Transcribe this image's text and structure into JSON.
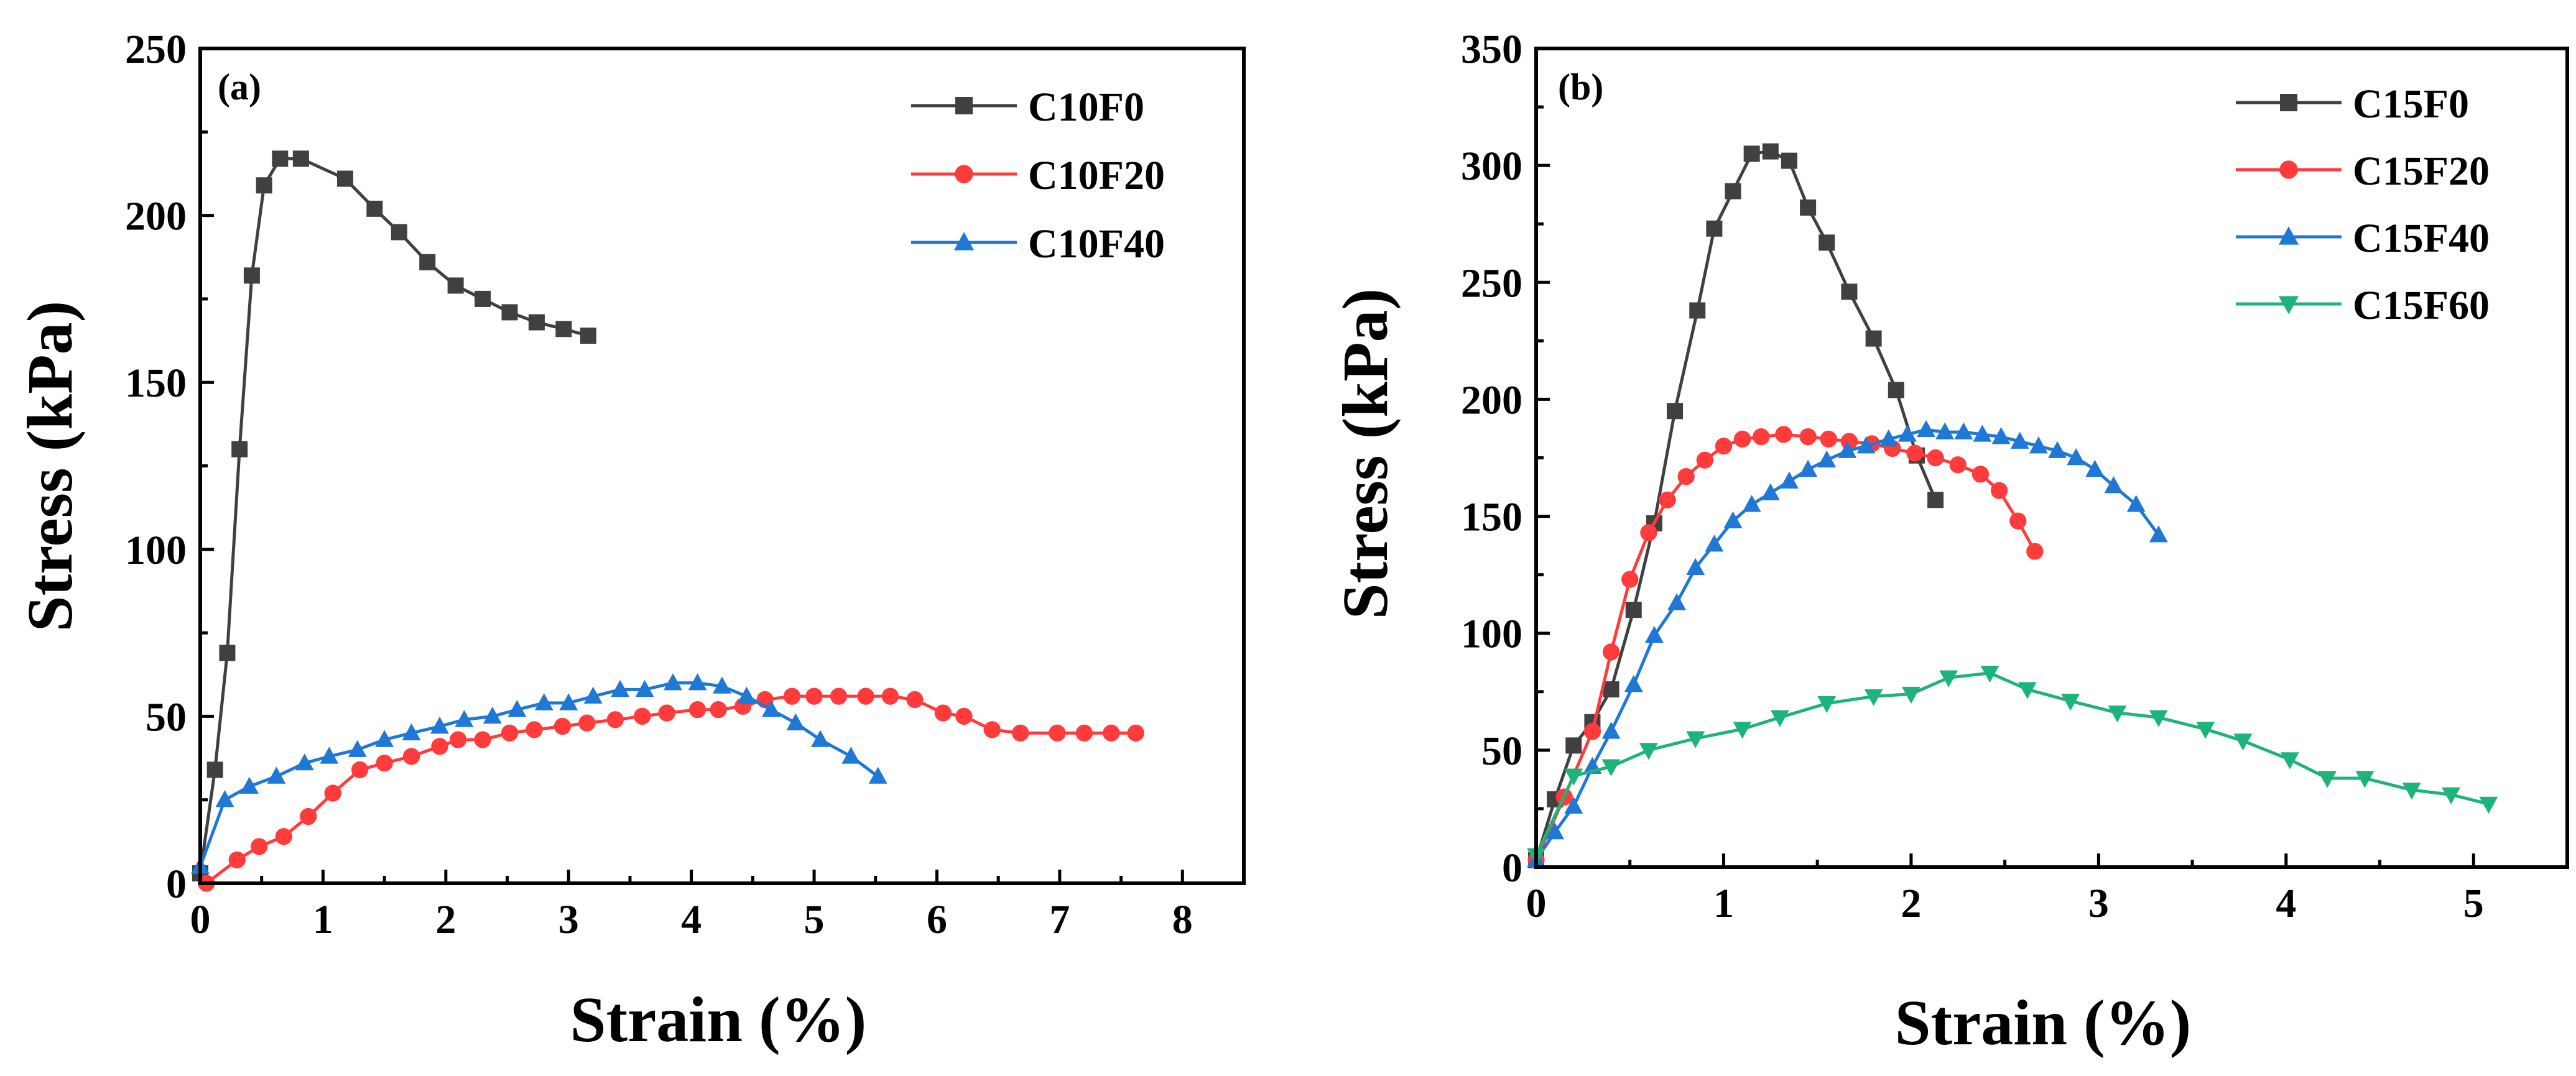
{
  "chart_data": [
    {
      "type": "line",
      "panel_label": "(a)",
      "xlabel": "Strain (%)",
      "ylabel": "Stress (kPa)",
      "xlim": [
        0,
        8.5
      ],
      "ylim": [
        0,
        250
      ],
      "xticks": [
        0,
        1,
        2,
        3,
        4,
        5,
        6,
        7,
        8
      ],
      "yticks": [
        0,
        50,
        100,
        150,
        200,
        250
      ],
      "legend_position": "top-right",
      "series": [
        {
          "name": "C10F0",
          "color": "#404040",
          "marker": "square",
          "x": [
            0,
            0.12,
            0.22,
            0.32,
            0.42,
            0.52,
            0.65,
            0.82,
            1.18,
            1.42,
            1.62,
            1.85,
            2.08,
            2.3,
            2.52,
            2.74,
            2.96,
            3.16
          ],
          "y": [
            3,
            34,
            69,
            130,
            182,
            209,
            217,
            217,
            211,
            202,
            195,
            186,
            179,
            175,
            171,
            168,
            166,
            164
          ]
        },
        {
          "name": "C10F20",
          "color": "#ff3b3b",
          "marker": "circle",
          "x": [
            0.05,
            0.3,
            0.48,
            0.68,
            0.88,
            1.08,
            1.3,
            1.5,
            1.72,
            1.95,
            2.1,
            2.3,
            2.52,
            2.72,
            2.95,
            3.15,
            3.38,
            3.6,
            3.8,
            4.05,
            4.22,
            4.42,
            4.6,
            4.82,
            5.0,
            5.2,
            5.42,
            5.62,
            5.82,
            6.05,
            6.22,
            6.45,
            6.68,
            6.98,
            7.2,
            7.42,
            7.62
          ],
          "y": [
            0,
            7,
            11,
            14,
            20,
            27,
            34,
            36,
            38,
            41,
            43,
            43,
            45,
            46,
            47,
            48,
            49,
            50,
            51,
            52,
            52,
            53,
            55,
            56,
            56,
            56,
            56,
            56,
            55,
            51,
            50,
            46,
            45,
            45,
            45,
            45,
            45
          ]
        },
        {
          "name": "C10F40",
          "color": "#1f78d6",
          "marker": "triangle-up",
          "x": [
            0,
            0.2,
            0.4,
            0.62,
            0.85,
            1.05,
            1.28,
            1.5,
            1.72,
            1.95,
            2.15,
            2.38,
            2.58,
            2.8,
            3.0,
            3.2,
            3.42,
            3.62,
            3.85,
            4.05,
            4.25,
            4.45,
            4.65,
            4.85,
            5.05,
            5.3,
            5.52
          ],
          "y": [
            5,
            25,
            29,
            32,
            36,
            38,
            40,
            43,
            45,
            47,
            49,
            50,
            52,
            54,
            54,
            56,
            58,
            58,
            60,
            60,
            59,
            56,
            52,
            48,
            43,
            38,
            32
          ]
        }
      ]
    },
    {
      "type": "line",
      "panel_label": "(b)",
      "xlabel": "Strain (%)",
      "ylabel": "Stress (kPa)",
      "xlim": [
        0,
        5.5
      ],
      "ylim": [
        0,
        350
      ],
      "xticks": [
        0,
        1,
        2,
        3,
        4,
        5
      ],
      "yticks": [
        0,
        50,
        100,
        150,
        200,
        250,
        300,
        350
      ],
      "legend_position": "top-right",
      "series": [
        {
          "name": "C15F0",
          "color": "#404040",
          "marker": "square",
          "x": [
            0.0,
            0.1,
            0.2,
            0.3,
            0.4,
            0.52,
            0.63,
            0.74,
            0.86,
            0.95,
            1.05,
            1.15,
            1.25,
            1.35,
            1.45,
            1.55,
            1.67,
            1.8,
            1.92,
            2.03,
            2.13
          ],
          "y": [
            3,
            29,
            52,
            62,
            76,
            110,
            147,
            195,
            238,
            273,
            289,
            305,
            306,
            302,
            282,
            267,
            246,
            226,
            204,
            176,
            157
          ]
        },
        {
          "name": "C15F20",
          "color": "#ff3b3b",
          "marker": "circle",
          "x": [
            0.0,
            0.15,
            0.3,
            0.4,
            0.5,
            0.6,
            0.7,
            0.8,
            0.9,
            1.0,
            1.1,
            1.2,
            1.32,
            1.45,
            1.56,
            1.67,
            1.79,
            1.9,
            2.02,
            2.13,
            2.25,
            2.37,
            2.47,
            2.57,
            2.66
          ],
          "y": [
            3,
            30,
            58,
            92,
            123,
            143,
            157,
            167,
            174,
            180,
            183,
            184,
            185,
            184,
            183,
            182,
            181,
            179,
            177,
            175,
            172,
            168,
            161,
            148,
            135
          ]
        },
        {
          "name": "C15F40",
          "color": "#1f78d6",
          "marker": "triangle-up",
          "x": [
            0.0,
            0.1,
            0.2,
            0.3,
            0.4,
            0.52,
            0.63,
            0.75,
            0.85,
            0.95,
            1.05,
            1.15,
            1.25,
            1.35,
            1.45,
            1.55,
            1.66,
            1.76,
            1.88,
            1.98,
            2.08,
            2.18,
            2.28,
            2.38,
            2.48,
            2.58,
            2.68,
            2.78,
            2.88,
            2.98,
            3.08,
            3.2,
            3.32
          ],
          "y": [
            3,
            15,
            26,
            43,
            58,
            78,
            99,
            113,
            128,
            138,
            148,
            155,
            160,
            165,
            170,
            174,
            178,
            180,
            183,
            185,
            187,
            186,
            186,
            185,
            184,
            182,
            180,
            178,
            175,
            170,
            163,
            155,
            142
          ]
        },
        {
          "name": "C15F60",
          "color": "#1db37a",
          "marker": "triangle-down",
          "x": [
            0.0,
            0.2,
            0.4,
            0.6,
            0.85,
            1.1,
            1.3,
            1.55,
            1.8,
            2.0,
            2.2,
            2.42,
            2.62,
            2.85,
            3.1,
            3.32,
            3.57,
            3.77,
            4.02,
            4.22,
            4.42,
            4.67,
            4.88,
            5.08
          ],
          "y": [
            5,
            39,
            43,
            50,
            55,
            59,
            64,
            70,
            73,
            74,
            81,
            83,
            76,
            71,
            66,
            64,
            59,
            54,
            46,
            38,
            38,
            33,
            31,
            27
          ]
        }
      ]
    }
  ]
}
